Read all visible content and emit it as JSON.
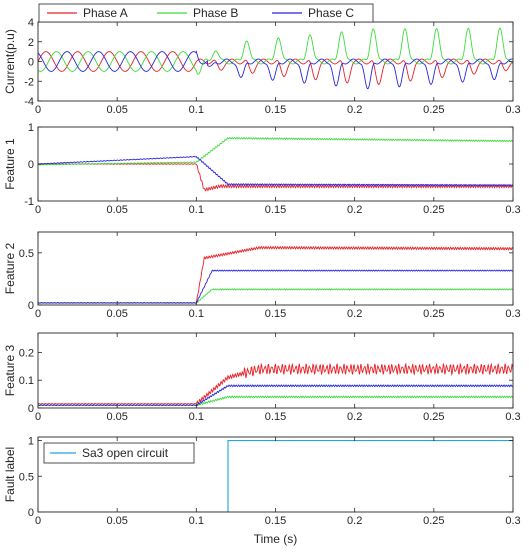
{
  "figure": {
    "xlabel": "Time (s)",
    "colors": {
      "phase_a": "#e8212a",
      "phase_b": "#3ddc3d",
      "phase_c": "#2525e0",
      "fault": "#21a7d8",
      "axis": "#262626"
    }
  },
  "chart_data": [
    {
      "type": "line",
      "ylabel": "Current(p.u)",
      "xlim": [
        0,
        0.3
      ],
      "ylim": [
        -4,
        4
      ],
      "xticks": [
        "0",
        "0.05",
        "0.1",
        "0.15",
        "0.2",
        "0.25",
        "0.3"
      ],
      "yticks": [
        -4,
        -2,
        0,
        2,
        4
      ],
      "legend": {
        "placement": "top-left",
        "orientation": "horizontal",
        "entries": [
          "Phase A",
          "Phase B",
          "Phase C"
        ]
      },
      "series": [
        {
          "name": "Phase A",
          "color": "#e8212a",
          "x": [
            0,
            0.1,
            0.12,
            0.21,
            0.3
          ],
          "values": [
            0,
            0,
            -0.3,
            -1.8,
            -0.2
          ]
        },
        {
          "name": "Phase B",
          "color": "#3ddc3d",
          "x": [
            0,
            0.1,
            0.12,
            0.21,
            0.3
          ],
          "values": [
            0.9,
            -0.6,
            1.5,
            2.9,
            3.0
          ]
        },
        {
          "name": "Phase C",
          "color": "#2525e0",
          "x": [
            0,
            0.1,
            0.12,
            0.21,
            0.3
          ],
          "values": [
            -0.8,
            0.6,
            -1.1,
            -2.4,
            -1.3
          ]
        }
      ]
    },
    {
      "type": "line",
      "ylabel": "Feature 1",
      "xlim": [
        0,
        0.3
      ],
      "ylim": [
        -1,
        1
      ],
      "xticks": [
        "0",
        "0.05",
        "0.1",
        "0.15",
        "0.2",
        "0.25",
        "0.3"
      ],
      "yticks": [
        -1,
        0,
        1
      ],
      "series": [
        {
          "color": "#e8212a",
          "x": [
            0,
            0.1,
            0.105,
            0.115,
            0.3
          ],
          "values": [
            0,
            0,
            -0.7,
            -0.6,
            -0.6
          ]
        },
        {
          "color": "#3ddc3d",
          "x": [
            0,
            0.1,
            0.12,
            0.3
          ],
          "values": [
            -0.02,
            0.05,
            0.7,
            0.62
          ]
        },
        {
          "color": "#2525e0",
          "x": [
            0,
            0.1,
            0.12,
            0.3
          ],
          "values": [
            0,
            0.2,
            -0.55,
            -0.58
          ]
        }
      ]
    },
    {
      "type": "line",
      "ylabel": "Feature 2",
      "xlim": [
        0,
        0.3
      ],
      "ylim": [
        0,
        0.7
      ],
      "xticks": [
        "0",
        "0.05",
        "0.1",
        "0.15",
        "0.2",
        "0.25",
        "0.3"
      ],
      "yticks": [
        0,
        0.5
      ],
      "series": [
        {
          "color": "#e8212a",
          "x": [
            0,
            0.1,
            0.105,
            0.14,
            0.3
          ],
          "values": [
            0.02,
            0.02,
            0.45,
            0.55,
            0.54
          ]
        },
        {
          "color": "#3ddc3d",
          "x": [
            0,
            0.1,
            0.11,
            0.3
          ],
          "values": [
            0.02,
            0.02,
            0.15,
            0.15
          ]
        },
        {
          "color": "#2525e0",
          "x": [
            0,
            0.1,
            0.11,
            0.3
          ],
          "values": [
            0.02,
            0.02,
            0.33,
            0.33
          ]
        }
      ]
    },
    {
      "type": "line",
      "ylabel": "Feature 3",
      "xlim": [
        0,
        0.3
      ],
      "ylim": [
        0,
        0.27
      ],
      "xticks": [
        "0",
        "0.05",
        "0.1",
        "0.15",
        "0.2",
        "0.25",
        "0.3"
      ],
      "yticks": [
        0,
        0.1,
        0.2
      ],
      "series": [
        {
          "color": "#e8212a",
          "x": [
            0,
            0.1,
            0.12,
            0.14,
            0.3
          ],
          "values": [
            0.015,
            0.015,
            0.11,
            0.14,
            0.14
          ]
        },
        {
          "color": "#3ddc3d",
          "x": [
            0,
            0.1,
            0.12,
            0.3
          ],
          "values": [
            0.01,
            0.01,
            0.04,
            0.04
          ]
        },
        {
          "color": "#2525e0",
          "x": [
            0,
            0.1,
            0.12,
            0.3
          ],
          "values": [
            0.01,
            0.01,
            0.08,
            0.08
          ]
        }
      ]
    },
    {
      "type": "line",
      "ylabel": "Fault label",
      "xlim": [
        0,
        0.3
      ],
      "ylim": [
        0,
        1.05
      ],
      "xticks": [
        "0",
        "0.05",
        "0.1",
        "0.15",
        "0.2",
        "0.25",
        "0.3"
      ],
      "yticks": [
        0,
        0.5,
        1
      ],
      "legend": {
        "placement": "top-left",
        "entries": [
          "Sa3 open circuit"
        ]
      },
      "series": [
        {
          "name": "Sa3 open circuit",
          "color": "#21a7d8",
          "x": [
            0,
            0.12,
            0.12,
            0.3
          ],
          "values": [
            0,
            0,
            1,
            1
          ]
        }
      ]
    }
  ]
}
